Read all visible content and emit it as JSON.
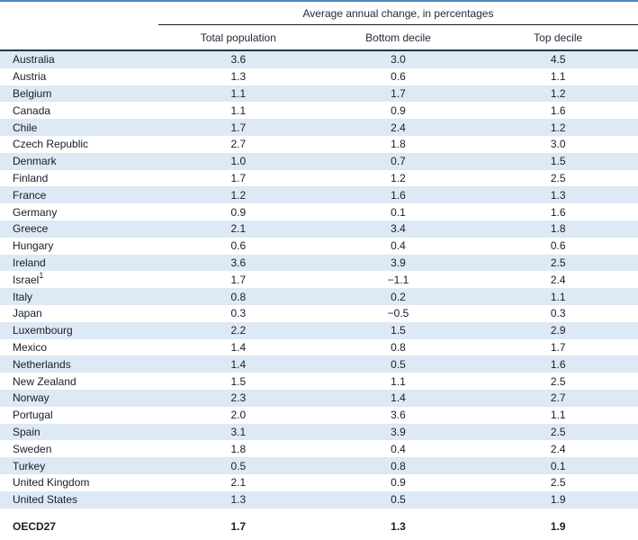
{
  "header": {
    "spanner": "Average annual change, in percentages",
    "columns": [
      "Total population",
      "Bottom decile",
      "Top decile"
    ]
  },
  "table": {
    "rows": [
      {
        "name": "Australia",
        "values": [
          "3.6",
          "3.0",
          "4.5"
        ]
      },
      {
        "name": "Austria",
        "values": [
          "1.3",
          "0.6",
          "1.1"
        ]
      },
      {
        "name": "Belgium",
        "values": [
          "1.1",
          "1.7",
          "1.2"
        ]
      },
      {
        "name": "Canada",
        "values": [
          "1.1",
          "0.9",
          "1.6"
        ]
      },
      {
        "name": "Chile",
        "values": [
          "1.7",
          "2.4",
          "1.2"
        ]
      },
      {
        "name": "Czech Republic",
        "values": [
          "2.7",
          "1.8",
          "3.0"
        ]
      },
      {
        "name": "Denmark",
        "values": [
          "1.0",
          "0.7",
          "1.5"
        ]
      },
      {
        "name": "Finland",
        "values": [
          "1.7",
          "1.2",
          "2.5"
        ]
      },
      {
        "name": "France",
        "values": [
          "1.2",
          "1.6",
          "1.3"
        ]
      },
      {
        "name": "Germany",
        "values": [
          "0.9",
          "0.1",
          "1.6"
        ]
      },
      {
        "name": "Greece",
        "values": [
          "2.1",
          "3.4",
          "1.8"
        ]
      },
      {
        "name": "Hungary",
        "values": [
          "0.6",
          "0.4",
          "0.6"
        ]
      },
      {
        "name": "Ireland",
        "values": [
          "3.6",
          "3.9",
          "2.5"
        ]
      },
      {
        "name": "Israel",
        "sup": "1",
        "values": [
          "1.7",
          "−1.1",
          "2.4"
        ]
      },
      {
        "name": "Italy",
        "values": [
          "0.8",
          "0.2",
          "1.1"
        ]
      },
      {
        "name": "Japan",
        "values": [
          "0.3",
          "−0.5",
          "0.3"
        ]
      },
      {
        "name": "Luxembourg",
        "values": [
          "2.2",
          "1.5",
          "2.9"
        ]
      },
      {
        "name": "Mexico",
        "values": [
          "1.4",
          "0.8",
          "1.7"
        ]
      },
      {
        "name": "Netherlands",
        "values": [
          "1.4",
          "0.5",
          "1.6"
        ]
      },
      {
        "name": "New Zealand",
        "values": [
          "1.5",
          "1.1",
          "2.5"
        ]
      },
      {
        "name": "Norway",
        "values": [
          "2.3",
          "1.4",
          "2.7"
        ]
      },
      {
        "name": "Portugal",
        "values": [
          "2.0",
          "3.6",
          "1.1"
        ]
      },
      {
        "name": "Spain",
        "values": [
          "3.1",
          "3.9",
          "2.5"
        ]
      },
      {
        "name": "Sweden",
        "values": [
          "1.8",
          "0.4",
          "2.4"
        ]
      },
      {
        "name": "Turkey",
        "values": [
          "0.5",
          "0.8",
          "0.1"
        ]
      },
      {
        "name": "United Kingdom",
        "values": [
          "2.1",
          "0.9",
          "2.5"
        ]
      },
      {
        "name": "United States",
        "values": [
          "1.3",
          "0.5",
          "1.9"
        ]
      }
    ],
    "summary": {
      "name": "OECD27",
      "values": [
        "1.7",
        "1.3",
        "1.9"
      ]
    }
  },
  "colors": {
    "top_rule": "#4d87c1",
    "thick_rule": "#213650",
    "stripe": "#dde9f4",
    "text": "#191e27"
  },
  "chart_data": {
    "type": "table",
    "title": "Average annual change, in percentages",
    "columns": [
      "Total population",
      "Bottom decile",
      "Top decile"
    ],
    "categories": [
      "Australia",
      "Austria",
      "Belgium",
      "Canada",
      "Chile",
      "Czech Republic",
      "Denmark",
      "Finland",
      "France",
      "Germany",
      "Greece",
      "Hungary",
      "Ireland",
      "Israel",
      "Italy",
      "Japan",
      "Luxembourg",
      "Mexico",
      "Netherlands",
      "New Zealand",
      "Norway",
      "Portugal",
      "Spain",
      "Sweden",
      "Turkey",
      "United Kingdom",
      "United States",
      "OECD27"
    ],
    "series": [
      {
        "name": "Total population",
        "values": [
          3.6,
          1.3,
          1.1,
          1.1,
          1.7,
          2.7,
          1.0,
          1.7,
          1.2,
          0.9,
          2.1,
          0.6,
          3.6,
          1.7,
          0.8,
          0.3,
          2.2,
          1.4,
          1.4,
          1.5,
          2.3,
          2.0,
          3.1,
          1.8,
          0.5,
          2.1,
          1.3,
          1.7
        ]
      },
      {
        "name": "Bottom decile",
        "values": [
          3.0,
          0.6,
          1.7,
          0.9,
          2.4,
          1.8,
          0.7,
          1.2,
          1.6,
          0.1,
          3.4,
          0.4,
          3.9,
          -1.1,
          0.2,
          -0.5,
          1.5,
          0.8,
          0.5,
          1.1,
          1.4,
          3.6,
          3.9,
          0.4,
          0.8,
          0.9,
          0.5,
          1.3
        ]
      },
      {
        "name": "Top decile",
        "values": [
          4.5,
          1.1,
          1.2,
          1.6,
          1.2,
          3.0,
          1.5,
          2.5,
          1.3,
          1.6,
          1.8,
          0.6,
          2.5,
          2.4,
          1.1,
          0.3,
          2.9,
          1.7,
          1.6,
          2.5,
          2.7,
          1.1,
          2.5,
          2.4,
          0.1,
          2.5,
          1.9,
          1.9
        ]
      }
    ]
  }
}
